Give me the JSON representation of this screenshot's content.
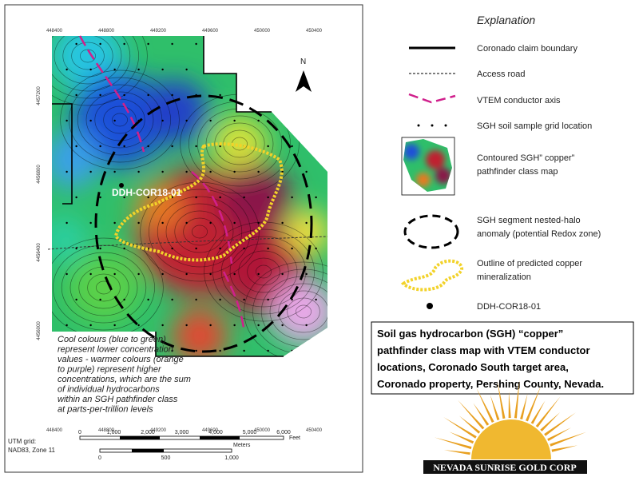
{
  "map": {
    "top_coords": [
      "448400",
      "448800",
      "449200",
      "449600",
      "450000",
      "450400"
    ],
    "bottom_coords": [
      "448400",
      "448800",
      "449200",
      "449600",
      "450000",
      "450400"
    ],
    "side_coords": [
      "4457200",
      "4456800",
      "4456400",
      "4456000"
    ],
    "north": "N",
    "drill_label": "DDH-COR18-01",
    "caption": [
      "Cool colours (blue to green)",
      "represent lower concentration",
      "values - warmer colours (orange",
      "to purple) represent higher",
      "concentrations, which are the sum",
      "of individual hydrocarbons",
      "within an SGH pathfinder class",
      "at parts-per-trillion levels"
    ],
    "grid_note": [
      "UTM grid:",
      "NAD83, Zone 11"
    ],
    "scale_feet": [
      "0",
      "1,000",
      "2,000",
      "3,000",
      "4,000",
      "5,000",
      "6,000"
    ],
    "feet_unit": "Feet",
    "scale_meters": [
      "0",
      "500",
      "1,000"
    ],
    "meters_unit": "Meters"
  },
  "legend": {
    "title": "Explanation",
    "items": [
      [
        "Coronado claim boundary"
      ],
      [
        "Access road"
      ],
      [
        "VTEM conductor  axis"
      ],
      [
        "SGH soil sample grid location"
      ],
      [
        "Contoured SGH” copper”",
        "pathfinder class map"
      ],
      [
        "SGH segment nested-halo",
        "anomaly (potential Redox zone)"
      ],
      [
        "Outline of predicted copper",
        "mineralization"
      ],
      [
        "DDH-COR18-01"
      ]
    ]
  },
  "description": [
    "Soil gas hydrocarbon (SGH) “copper”",
    "pathfinder class map with VTEM conductor",
    "locations, Coronado South target area,",
    "Coronado property, Pershing County, Nevada."
  ],
  "logo": "NEVADA SUNRISE GOLD CORP"
}
